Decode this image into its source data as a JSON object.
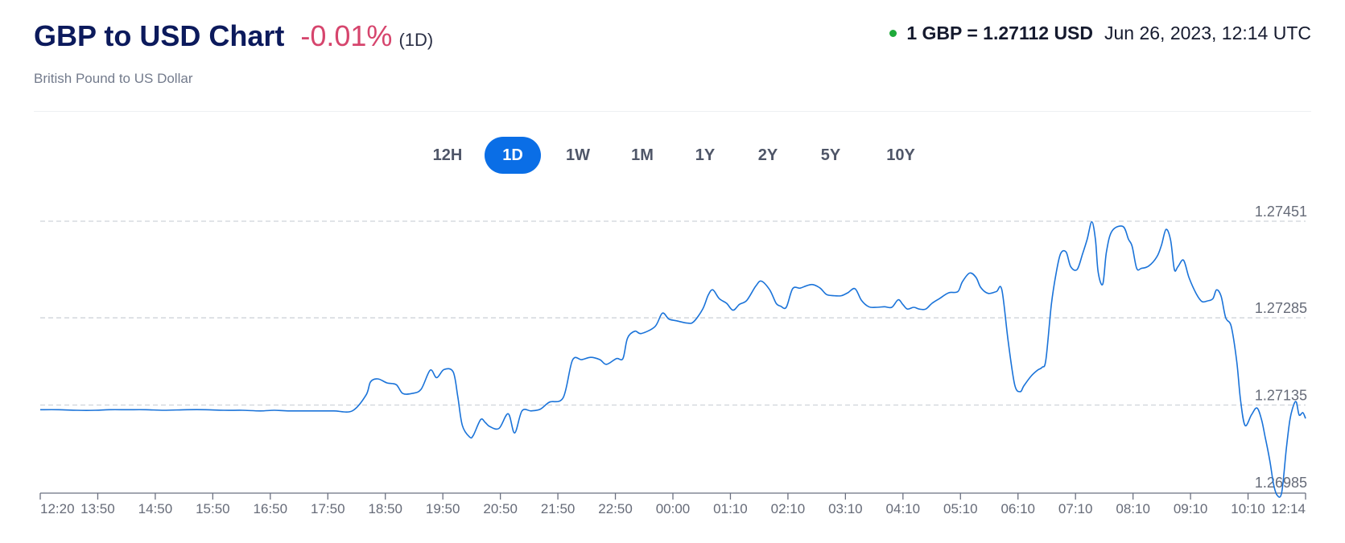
{
  "header": {
    "title": "GBP to USD Chart",
    "change": "-0.01%",
    "period": "(1D)",
    "subtitle": "British Pound to US Dollar"
  },
  "rate": {
    "value": "1 GBP = 1.27112 USD",
    "timestamp": "Jun 26, 2023, 12:14 UTC",
    "status_color": "#1eaa3a"
  },
  "tabs": [
    {
      "label": "12H",
      "active": false
    },
    {
      "label": "1D",
      "active": true
    },
    {
      "label": "1W",
      "active": false
    },
    {
      "label": "1M",
      "active": false
    },
    {
      "label": "1Y",
      "active": false
    },
    {
      "label": "2Y",
      "active": false
    },
    {
      "label": "5Y",
      "active": false
    },
    {
      "label": "10Y",
      "active": false
    }
  ],
  "colors": {
    "accent": "#0a6ee6",
    "line": "#1a73d9",
    "negative": "#d6456d"
  },
  "chart_data": {
    "type": "line",
    "title": "GBP to USD Chart",
    "xlabel": "",
    "ylabel": "",
    "y_ticks": [
      1.27451,
      1.27285,
      1.27135,
      1.26985
    ],
    "ylim": [
      1.26985,
      1.27451
    ],
    "x_ticks": [
      "12:20",
      "13:50",
      "14:50",
      "15:50",
      "16:50",
      "17:50",
      "18:50",
      "19:50",
      "20:50",
      "21:50",
      "22:50",
      "00:00",
      "01:10",
      "02:10",
      "03:10",
      "04:10",
      "05:10",
      "06:10",
      "07:10",
      "08:10",
      "09:10",
      "10:10",
      "12:14"
    ],
    "grid": true,
    "series": [
      {
        "values": [
          [
            0,
            1.27127
          ],
          [
            20,
            1.27127
          ],
          [
            40,
            1.27126
          ],
          [
            60,
            1.27126
          ],
          [
            75,
            1.27127
          ],
          [
            95,
            1.27127
          ],
          [
            115,
            1.27127
          ],
          [
            135,
            1.27126
          ],
          [
            160,
            1.27127
          ],
          [
            180,
            1.27127
          ],
          [
            200,
            1.27126
          ],
          [
            220,
            1.27126
          ],
          [
            240,
            1.27125
          ],
          [
            255,
            1.27126
          ],
          [
            270,
            1.27125
          ],
          [
            300,
            1.27125
          ],
          [
            320,
            1.27125
          ],
          [
            340,
            1.27125
          ],
          [
            355,
            1.27152
          ],
          [
            360,
            1.27175
          ],
          [
            368,
            1.2718
          ],
          [
            378,
            1.27173
          ],
          [
            388,
            1.2717
          ],
          [
            395,
            1.27155
          ],
          [
            405,
            1.27155
          ],
          [
            415,
            1.27162
          ],
          [
            425,
            1.27195
          ],
          [
            432,
            1.27182
          ],
          [
            440,
            1.27196
          ],
          [
            450,
            1.27192
          ],
          [
            455,
            1.2715
          ],
          [
            460,
            1.271
          ],
          [
            468,
            1.2708
          ],
          [
            472,
            1.27083
          ],
          [
            480,
            1.2711
          ],
          [
            485,
            1.27105
          ],
          [
            490,
            1.27098
          ],
          [
            500,
            1.27095
          ],
          [
            510,
            1.2712
          ],
          [
            517,
            1.27087
          ],
          [
            525,
            1.27125
          ],
          [
            535,
            1.27125
          ],
          [
            545,
            1.27128
          ],
          [
            555,
            1.2714
          ],
          [
            570,
            1.27148
          ],
          [
            580,
            1.27212
          ],
          [
            590,
            1.27213
          ],
          [
            600,
            1.27217
          ],
          [
            610,
            1.27213
          ],
          [
            617,
            1.27205
          ],
          [
            628,
            1.27215
          ],
          [
            635,
            1.27215
          ],
          [
            640,
            1.2725
          ],
          [
            648,
            1.27262
          ],
          [
            655,
            1.27258
          ],
          [
            670,
            1.2727
          ],
          [
            678,
            1.27293
          ],
          [
            685,
            1.27283
          ],
          [
            693,
            1.2728
          ],
          [
            705,
            1.27276
          ],
          [
            712,
            1.27278
          ],
          [
            722,
            1.273
          ],
          [
            728,
            1.27324
          ],
          [
            733,
            1.27333
          ],
          [
            740,
            1.27318
          ],
          [
            748,
            1.2731
          ],
          [
            755,
            1.27298
          ],
          [
            762,
            1.27308
          ],
          [
            770,
            1.27315
          ],
          [
            780,
            1.2734
          ],
          [
            786,
            1.27348
          ],
          [
            795,
            1.27333
          ],
          [
            802,
            1.2731
          ],
          [
            807,
            1.27305
          ],
          [
            813,
            1.27303
          ],
          [
            820,
            1.27335
          ],
          [
            828,
            1.27336
          ],
          [
            835,
            1.2734
          ],
          [
            842,
            1.27342
          ],
          [
            850,
            1.27336
          ],
          [
            857,
            1.27325
          ],
          [
            865,
            1.27323
          ],
          [
            873,
            1.27323
          ],
          [
            880,
            1.27328
          ],
          [
            888,
            1.27335
          ],
          [
            895,
            1.27315
          ],
          [
            903,
            1.27304
          ],
          [
            912,
            1.27303
          ],
          [
            920,
            1.27304
          ],
          [
            928,
            1.27303
          ],
          [
            935,
            1.27316
          ],
          [
            940,
            1.27308
          ],
          [
            945,
            1.273
          ],
          [
            952,
            1.27303
          ],
          [
            958,
            1.273
          ],
          [
            965,
            1.273
          ],
          [
            972,
            1.2731
          ],
          [
            980,
            1.27318
          ],
          [
            990,
            1.27328
          ],
          [
            1000,
            1.2733
          ],
          [
            1005,
            1.27347
          ],
          [
            1013,
            1.27362
          ],
          [
            1020,
            1.27354
          ],
          [
            1025,
            1.27337
          ],
          [
            1033,
            1.27327
          ],
          [
            1042,
            1.2733
          ],
          [
            1048,
            1.27333
          ],
          [
            1055,
            1.27243
          ],
          [
            1062,
            1.2717
          ],
          [
            1068,
            1.27158
          ],
          [
            1072,
            1.27168
          ],
          [
            1080,
            1.27185
          ],
          [
            1087,
            1.27195
          ],
          [
            1092,
            1.272
          ],
          [
            1096,
            1.27213
          ],
          [
            1102,
            1.27308
          ],
          [
            1107,
            1.2736
          ],
          [
            1112,
            1.27395
          ],
          [
            1118,
            1.27398
          ],
          [
            1123,
            1.27373
          ],
          [
            1130,
            1.27368
          ],
          [
            1136,
            1.27395
          ],
          [
            1141,
            1.2742
          ],
          [
            1146,
            1.2745
          ],
          [
            1150,
            1.2742
          ],
          [
            1153,
            1.27363
          ],
          [
            1158,
            1.27343
          ],
          [
            1162,
            1.27398
          ],
          [
            1168,
            1.27434
          ],
          [
            1180,
            1.27442
          ],
          [
            1186,
            1.2742
          ],
          [
            1190,
            1.27408
          ],
          [
            1195,
            1.2737
          ],
          [
            1200,
            1.2737
          ],
          [
            1208,
            1.27374
          ],
          [
            1217,
            1.2739
          ],
          [
            1222,
            1.2741
          ],
          [
            1227,
            1.27437
          ],
          [
            1232,
            1.27418
          ],
          [
            1236,
            1.27368
          ],
          [
            1240,
            1.27373
          ],
          [
            1246,
            1.27384
          ],
          [
            1252,
            1.27354
          ],
          [
            1260,
            1.27326
          ],
          [
            1266,
            1.27313
          ],
          [
            1272,
            1.27314
          ],
          [
            1278,
            1.27318
          ],
          [
            1282,
            1.27333
          ],
          [
            1287,
            1.27322
          ],
          [
            1292,
            1.27285
          ],
          [
            1298,
            1.2727
          ],
          [
            1304,
            1.2721
          ],
          [
            1308,
            1.27145
          ],
          [
            1313,
            1.271
          ],
          [
            1320,
            1.27118
          ],
          [
            1326,
            1.2713
          ],
          [
            1331,
            1.2711
          ],
          [
            1335,
            1.2708
          ],
          [
            1340,
            1.2704
          ],
          [
            1344,
            1.27
          ],
          [
            1348,
            1.2698
          ],
          [
            1353,
            1.26985
          ],
          [
            1358,
            1.2706
          ],
          [
            1362,
            1.2711
          ],
          [
            1366,
            1.27135
          ],
          [
            1369,
            1.2714
          ],
          [
            1372,
            1.27118
          ],
          [
            1376,
            1.27122
          ],
          [
            1379,
            1.27112
          ]
        ]
      }
    ]
  }
}
